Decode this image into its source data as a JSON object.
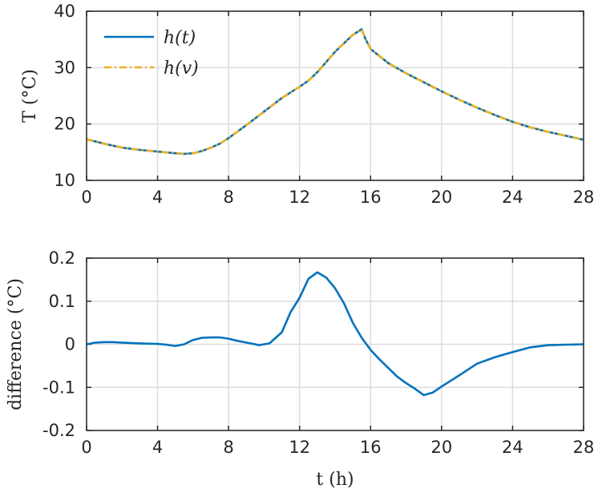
{
  "chart_data": [
    {
      "type": "line",
      "xlabel": "",
      "ylabel": "T (°C)",
      "xlim": [
        0,
        28
      ],
      "ylim": [
        10,
        40
      ],
      "xticks": [
        "0",
        "4",
        "8",
        "12",
        "16",
        "20",
        "24",
        "28"
      ],
      "yticks": [
        "10",
        "20",
        "30",
        "40"
      ],
      "grid": true,
      "legend_position": "top-left",
      "series": [
        {
          "name": "h(t)",
          "color": "#0072BD",
          "style": "solid",
          "x": [
            0,
            1,
            2,
            3,
            4,
            5,
            5.5,
            6,
            6.5,
            7,
            7.5,
            8,
            9,
            10,
            11,
            12,
            12.5,
            13,
            14,
            15,
            15.5,
            15.7,
            16,
            17,
            18,
            19,
            20,
            21,
            22,
            23,
            24,
            25,
            26,
            27,
            28
          ],
          "y": [
            17.3,
            16.5,
            15.8,
            15.4,
            15.1,
            14.8,
            14.7,
            14.8,
            15.2,
            15.8,
            16.5,
            17.5,
            19.8,
            22.2,
            24.6,
            26.6,
            27.7,
            29.2,
            32.8,
            35.8,
            36.8,
            35.2,
            33.3,
            30.8,
            29.0,
            27.4,
            25.8,
            24.3,
            22.9,
            21.6,
            20.4,
            19.4,
            18.6,
            17.9,
            17.2
          ]
        },
        {
          "name": "h(v)",
          "color": "#EDB120",
          "style": "dashdot",
          "x": [
            0,
            1,
            2,
            3,
            4,
            5,
            5.5,
            6,
            6.5,
            7,
            7.5,
            8,
            9,
            10,
            11,
            12,
            12.5,
            13,
            14,
            15,
            15.5,
            15.7,
            16,
            17,
            18,
            19,
            20,
            21,
            22,
            23,
            24,
            25,
            26,
            27,
            28
          ],
          "y": [
            17.3,
            16.5,
            15.8,
            15.4,
            15.1,
            14.8,
            14.7,
            14.8,
            15.2,
            15.8,
            16.5,
            17.5,
            19.8,
            22.2,
            24.6,
            26.6,
            27.7,
            29.2,
            32.8,
            35.8,
            36.8,
            35.2,
            33.3,
            30.8,
            29.0,
            27.4,
            25.8,
            24.3,
            22.9,
            21.6,
            20.4,
            19.4,
            18.6,
            17.9,
            17.2
          ]
        }
      ]
    },
    {
      "type": "line",
      "xlabel": "t (h)",
      "ylabel": "difference (°C)",
      "xlim": [
        0,
        28
      ],
      "ylim": [
        -0.2,
        0.2
      ],
      "xticks": [
        "0",
        "4",
        "8",
        "12",
        "16",
        "20",
        "24",
        "28"
      ],
      "yticks": [
        "-0.2",
        "-0.1",
        "0",
        "0.1",
        "0.2"
      ],
      "grid": true,
      "series": [
        {
          "color": "#0072BD",
          "style": "solid",
          "x": [
            0,
            0.5,
            1,
            1.5,
            2,
            3,
            4,
            4.5,
            5,
            5.5,
            6,
            6.5,
            7,
            7.5,
            8,
            8.5,
            9,
            9.5,
            9.7,
            10,
            10.3,
            11,
            11.5,
            12,
            12.5,
            13,
            13.5,
            14,
            14.5,
            15,
            15.5,
            16,
            16.5,
            17,
            17.5,
            18,
            18.5,
            19,
            19.5,
            20,
            21,
            22,
            23,
            24,
            25,
            26,
            27,
            28
          ],
          "y": [
            0.0,
            0.004,
            0.005,
            0.005,
            0.004,
            0.002,
            0.001,
            -0.001,
            -0.004,
            0.0,
            0.01,
            0.015,
            0.016,
            0.016,
            0.013,
            0.008,
            0.004,
            0.0,
            -0.002,
            0.0,
            0.002,
            0.028,
            0.075,
            0.108,
            0.152,
            0.167,
            0.155,
            0.13,
            0.095,
            0.05,
            0.015,
            -0.013,
            -0.035,
            -0.055,
            -0.075,
            -0.09,
            -0.103,
            -0.118,
            -0.112,
            -0.098,
            -0.072,
            -0.045,
            -0.03,
            -0.018,
            -0.007,
            -0.002,
            -0.001,
            0.0
          ]
        }
      ]
    }
  ]
}
